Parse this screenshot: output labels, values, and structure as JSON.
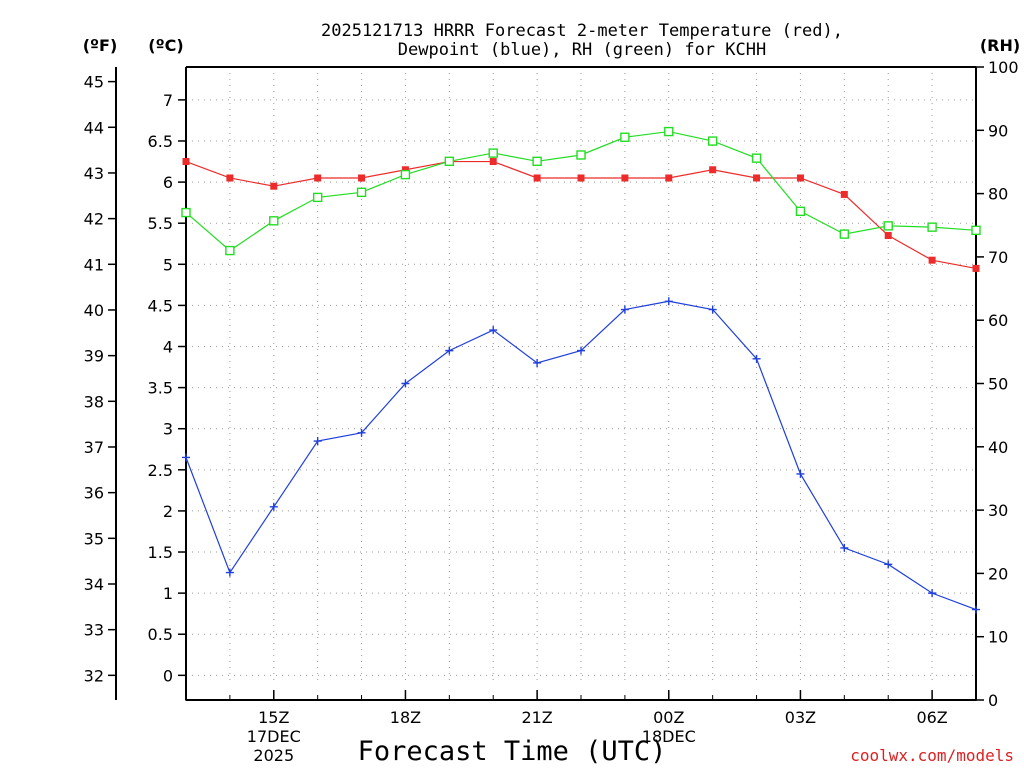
{
  "chart_data": {
    "type": "line",
    "title_lines": [
      "2025121713 HRRR Forecast 2-meter Temperature (red),",
      "Dewpoint (blue), RH (green) for KCHH"
    ],
    "xlabel": "Forecast Time (UTC)",
    "credit": "coolwx.com/models",
    "grid": true,
    "x_range": [
      13,
      31
    ],
    "x_ticks": [
      {
        "x": 15,
        "label": "15Z",
        "sub": [
          "17DEC",
          "2025"
        ]
      },
      {
        "x": 18,
        "label": "18Z",
        "sub": []
      },
      {
        "x": 21,
        "label": "21Z",
        "sub": []
      },
      {
        "x": 24,
        "label": "00Z",
        "sub": [
          "18DEC"
        ]
      },
      {
        "x": 27,
        "label": "03Z",
        "sub": []
      },
      {
        "x": 30,
        "label": "06Z",
        "sub": []
      }
    ],
    "axes": {
      "celsius": {
        "unit": "(ºC)",
        "range": [
          -0.3,
          7.4
        ],
        "ticks": [
          "0",
          "0.5",
          "1",
          "1.5",
          "2",
          "2.5",
          "3",
          "3.5",
          "4",
          "4.5",
          "5",
          "5.5",
          "6",
          "6.5",
          "7"
        ]
      },
      "fahrenheit": {
        "unit": "(ºF)",
        "range": [
          31.46,
          45.32
        ],
        "ticks": [
          "32",
          "33",
          "34",
          "35",
          "36",
          "37",
          "38",
          "39",
          "40",
          "41",
          "42",
          "43",
          "44",
          "45"
        ]
      },
      "rh": {
        "unit": "(RH)",
        "range": [
          0,
          100
        ],
        "ticks": [
          "0",
          "10",
          "20",
          "30",
          "40",
          "50",
          "60",
          "70",
          "80",
          "90",
          "100"
        ]
      }
    },
    "x": [
      13,
      14,
      15,
      16,
      17,
      18,
      19,
      20,
      21,
      22,
      23,
      24,
      25,
      26,
      27,
      28,
      29,
      30,
      31
    ],
    "series": [
      {
        "name": "Temperature",
        "axis": "celsius",
        "color": "#ee2b2b",
        "marker": "filled-square",
        "values": [
          6.25,
          6.05,
          5.95,
          6.05,
          6.05,
          6.15,
          6.25,
          6.25,
          6.05,
          6.05,
          6.05,
          6.05,
          6.15,
          6.05,
          6.05,
          5.85,
          5.35,
          5.05,
          4.95
        ]
      },
      {
        "name": "Dewpoint",
        "axis": "celsius",
        "color": "#1f3fdc",
        "marker": "plus",
        "values": [
          2.65,
          1.25,
          2.05,
          2.85,
          2.95,
          3.55,
          3.95,
          4.2,
          3.8,
          3.95,
          4.45,
          4.55,
          4.45,
          3.85,
          2.45,
          1.55,
          1.35,
          1.0,
          0.8
        ]
      },
      {
        "name": "RH",
        "axis": "rh",
        "color": "#22dd22",
        "marker": "open-square",
        "values": [
          77,
          71,
          75.7,
          79.4,
          80.2,
          83,
          85.1,
          86.4,
          85.1,
          86.1,
          88.9,
          89.8,
          88.3,
          85.6,
          77.2,
          73.6,
          74.9,
          74.7,
          74.2
        ]
      }
    ]
  }
}
